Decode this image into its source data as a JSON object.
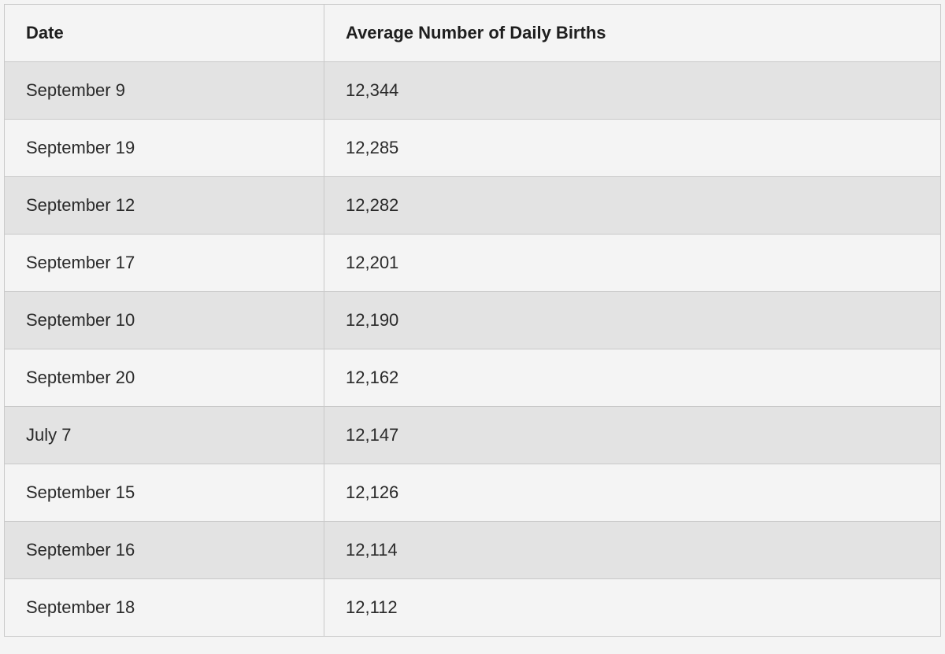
{
  "table": {
    "headers": [
      "Date",
      "Average Number of Daily Births"
    ],
    "rows": [
      [
        "September 9",
        "12,344"
      ],
      [
        "September 19",
        "12,285"
      ],
      [
        "September 12",
        "12,282"
      ],
      [
        "September 17",
        "12,201"
      ],
      [
        "September 10",
        "12,190"
      ],
      [
        "September 20",
        "12,162"
      ],
      [
        "July 7",
        "12,147"
      ],
      [
        "September 15",
        "12,126"
      ],
      [
        "September 16",
        "12,114"
      ],
      [
        "September 18",
        "12,112"
      ]
    ]
  }
}
